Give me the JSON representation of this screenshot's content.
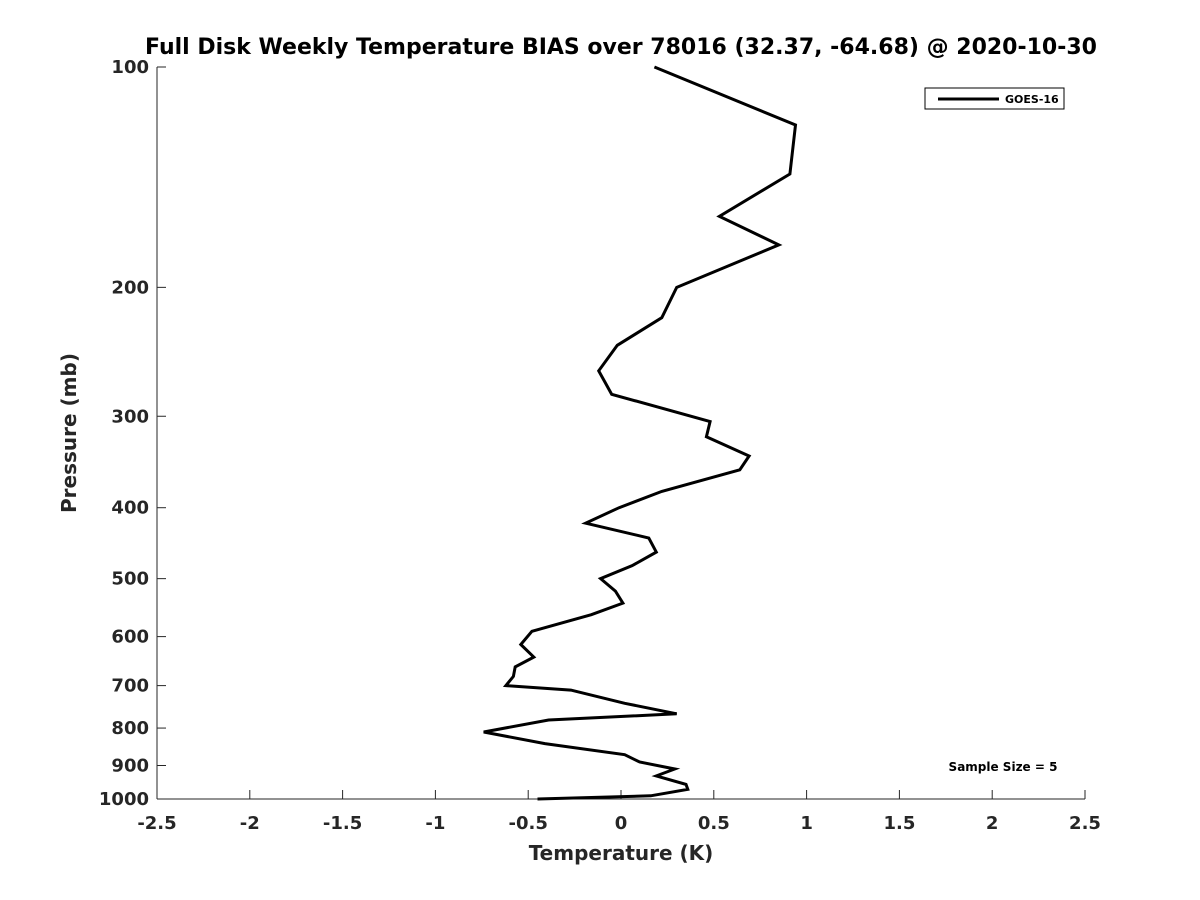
{
  "chart_data": {
    "type": "line",
    "title": "Full Disk Weekly Temperature BIAS over 78016 (32.37, -64.68) @ 2020-10-30",
    "xlabel": "Temperature (K)",
    "ylabel": "Pressure (mb)",
    "xlim": [
      -2.5,
      2.5
    ],
    "ylim": [
      100,
      1000
    ],
    "y_scale": "log",
    "y_reversed": true,
    "x_ticks": [
      -2.5,
      -2,
      -1.5,
      -1,
      -0.5,
      0,
      0.5,
      1,
      1.5,
      2,
      2.5
    ],
    "x_tick_labels": [
      "-2.5",
      "-2",
      "-1.5",
      "-1",
      "-0.5",
      "0",
      "0.5",
      "1",
      "1.5",
      "2",
      "2.5"
    ],
    "y_ticks": [
      100,
      200,
      300,
      400,
      500,
      600,
      700,
      800,
      900,
      1000
    ],
    "y_tick_labels": [
      "100",
      "200",
      "300",
      "400",
      "500",
      "600",
      "700",
      "800",
      "900",
      "1000"
    ],
    "grid": false,
    "legend_position": "top-right",
    "series": [
      {
        "name": "GOES-16",
        "color": "#000000",
        "points": [
          [
            0.18,
            100
          ],
          [
            0.94,
            120
          ],
          [
            0.91,
            140
          ],
          [
            0.53,
            160
          ],
          [
            0.85,
            175
          ],
          [
            0.3,
            200
          ],
          [
            0.22,
            220
          ],
          [
            -0.02,
            240
          ],
          [
            -0.12,
            260
          ],
          [
            -0.05,
            280
          ],
          [
            0.48,
            305
          ],
          [
            0.46,
            320
          ],
          [
            0.69,
            340
          ],
          [
            0.64,
            355
          ],
          [
            0.22,
            380
          ],
          [
            -0.01,
            400
          ],
          [
            -0.19,
            420
          ],
          [
            0.15,
            440
          ],
          [
            0.19,
            460
          ],
          [
            0.06,
            480
          ],
          [
            -0.11,
            500
          ],
          [
            -0.03,
            520
          ],
          [
            0.01,
            540
          ],
          [
            -0.16,
            560
          ],
          [
            -0.48,
            590
          ],
          [
            -0.54,
            615
          ],
          [
            -0.47,
            640
          ],
          [
            -0.57,
            660
          ],
          [
            -0.58,
            680
          ],
          [
            -0.62,
            700
          ],
          [
            -0.27,
            710
          ],
          [
            0.02,
            740
          ],
          [
            0.3,
            765
          ],
          [
            -0.39,
            780
          ],
          [
            -0.74,
            810
          ],
          [
            -0.41,
            840
          ],
          [
            0.02,
            870
          ],
          [
            0.1,
            890
          ],
          [
            0.29,
            910
          ],
          [
            0.19,
            930
          ],
          [
            0.35,
            955
          ],
          [
            0.36,
            970
          ],
          [
            0.16,
            990
          ],
          [
            -0.45,
            1000
          ]
        ]
      }
    ],
    "annotations": [
      {
        "text": "Sample Size = 5",
        "position": "bottom-right"
      }
    ]
  }
}
